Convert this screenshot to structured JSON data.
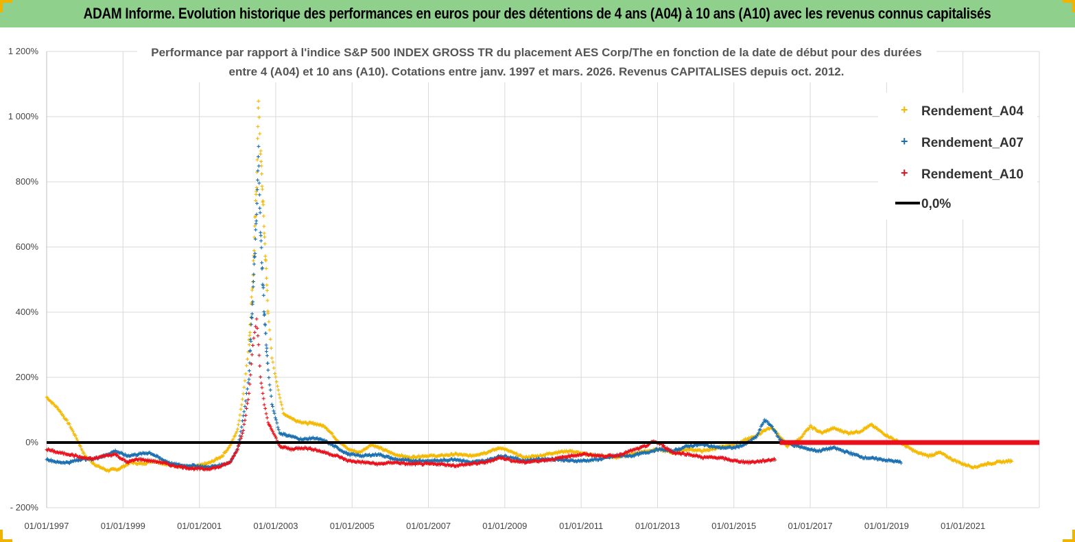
{
  "header": {
    "title": "ADAM Informe. Evolution historique des performances en euros pour des détentions de 4 ans (A04) à 10 ans (A10) avec les revenus connus capitalisés"
  },
  "colors": {
    "header_bg": "#8fd08c",
    "a04": "#f5b800",
    "a07": "#1a6fb0",
    "a10": "#e8101a",
    "zero": "#000000",
    "grid": "#d9d9d9"
  },
  "chart_data": {
    "type": "scatter",
    "title_line1": "Performance par rapport à l'indice S&P 500 INDEX GROSS TR  du placement AES Corp/The en fonction de la date de début pour des durées",
    "title_line2": "entre 4 (A04) et 10 ans (A10). Cotations entre janv. 1997 et mars. 2026. Revenus CAPITALISES depuis oct. 2012.",
    "y_ticks": [
      "1 200%",
      "1 000%",
      "800%",
      "600%",
      "400%",
      "200%",
      "0%",
      "- 200%"
    ],
    "ylim": [
      -200,
      1200
    ],
    "x_ticks": [
      "01/01/1997",
      "01/01/1999",
      "01/01/2001",
      "01/01/2003",
      "01/01/2005",
      "01/01/2007",
      "01/01/2009",
      "01/01/2011",
      "01/01/2013",
      "01/01/2015",
      "01/01/2017",
      "01/01/2019",
      "01/01/2021"
    ],
    "xlim": [
      "01/01/1997",
      "01/01/2023"
    ],
    "grid": true,
    "legend_position": "top-right",
    "series": [
      {
        "name": "Rendement_A04",
        "color": "#f5b800",
        "points": [
          [
            1997.0,
            140
          ],
          [
            1997.3,
            105
          ],
          [
            1997.6,
            55
          ],
          [
            1997.8,
            10
          ],
          [
            1998.0,
            -40
          ],
          [
            1998.3,
            -70
          ],
          [
            1998.6,
            -85
          ],
          [
            1998.9,
            -80
          ],
          [
            1999.2,
            -60
          ],
          [
            1999.5,
            -65
          ],
          [
            1999.8,
            -55
          ],
          [
            2000.1,
            -65
          ],
          [
            2000.4,
            -70
          ],
          [
            2000.7,
            -75
          ],
          [
            2001.0,
            -70
          ],
          [
            2001.3,
            -60
          ],
          [
            2001.6,
            -40
          ],
          [
            2001.8,
            -10
          ],
          [
            2002.0,
            40
          ],
          [
            2002.15,
            150
          ],
          [
            2002.3,
            300
          ],
          [
            2002.4,
            500
          ],
          [
            2002.5,
            800
          ],
          [
            2002.55,
            1050
          ],
          [
            2002.6,
            900
          ],
          [
            2002.7,
            650
          ],
          [
            2002.8,
            400
          ],
          [
            2002.9,
            260
          ],
          [
            2003.0,
            200
          ],
          [
            2003.2,
            90
          ],
          [
            2003.5,
            70
          ],
          [
            2003.8,
            60
          ],
          [
            2004.0,
            60
          ],
          [
            2004.3,
            50
          ],
          [
            2004.6,
            10
          ],
          [
            2004.9,
            -20
          ],
          [
            2005.2,
            -30
          ],
          [
            2005.5,
            -5
          ],
          [
            2005.8,
            -20
          ],
          [
            2006.1,
            -35
          ],
          [
            2006.5,
            -45
          ],
          [
            2006.9,
            -40
          ],
          [
            2007.3,
            -40
          ],
          [
            2007.7,
            -35
          ],
          [
            2008.1,
            -40
          ],
          [
            2008.5,
            -30
          ],
          [
            2008.9,
            -15
          ],
          [
            2009.2,
            -30
          ],
          [
            2009.5,
            -45
          ],
          [
            2009.9,
            -40
          ],
          [
            2010.3,
            -30
          ],
          [
            2010.7,
            -25
          ],
          [
            2011.1,
            -35
          ],
          [
            2011.5,
            -40
          ],
          [
            2011.9,
            -45
          ],
          [
            2012.3,
            -35
          ],
          [
            2012.7,
            -25
          ],
          [
            2013.0,
            -20
          ],
          [
            2013.4,
            -30
          ],
          [
            2013.8,
            -20
          ],
          [
            2014.2,
            -25
          ],
          [
            2014.6,
            -15
          ],
          [
            2015.0,
            -5
          ],
          [
            2015.3,
            10
          ],
          [
            2015.6,
            20
          ],
          [
            2015.8,
            40
          ],
          [
            2016.0,
            45
          ],
          [
            2016.2,
            20
          ],
          [
            2016.4,
            -10
          ],
          [
            2016.7,
            10
          ],
          [
            2017.0,
            50
          ],
          [
            2017.3,
            30
          ],
          [
            2017.6,
            45
          ],
          [
            2018.0,
            30
          ],
          [
            2018.3,
            35
          ],
          [
            2018.6,
            55
          ],
          [
            2018.9,
            30
          ],
          [
            2019.2,
            10
          ],
          [
            2019.5,
            -10
          ],
          [
            2019.8,
            -30
          ],
          [
            2020.1,
            -40
          ],
          [
            2020.4,
            -30
          ],
          [
            2020.7,
            -50
          ],
          [
            2021.0,
            -65
          ],
          [
            2021.3,
            -75
          ],
          [
            2021.6,
            -65
          ],
          [
            2021.9,
            -60
          ],
          [
            2022.3,
            -55
          ]
        ]
      },
      {
        "name": "Rendement_A07",
        "color": "#1a6fb0",
        "points": [
          [
            1997.0,
            -50
          ],
          [
            1997.3,
            -60
          ],
          [
            1997.6,
            -60
          ],
          [
            1997.9,
            -50
          ],
          [
            1998.2,
            -50
          ],
          [
            1998.5,
            -40
          ],
          [
            1998.8,
            -25
          ],
          [
            1999.1,
            -40
          ],
          [
            1999.4,
            -35
          ],
          [
            1999.7,
            -30
          ],
          [
            2000.0,
            -50
          ],
          [
            2000.3,
            -65
          ],
          [
            2000.6,
            -70
          ],
          [
            2000.9,
            -70
          ],
          [
            2001.2,
            -75
          ],
          [
            2001.5,
            -70
          ],
          [
            2001.8,
            -60
          ],
          [
            2002.0,
            -20
          ],
          [
            2002.15,
            80
          ],
          [
            2002.3,
            200
          ],
          [
            2002.4,
            450
          ],
          [
            2002.5,
            700
          ],
          [
            2002.55,
            900
          ],
          [
            2002.6,
            650
          ],
          [
            2002.7,
            400
          ],
          [
            2002.8,
            220
          ],
          [
            2002.9,
            120
          ],
          [
            2003.1,
            30
          ],
          [
            2003.4,
            20
          ],
          [
            2003.7,
            10
          ],
          [
            2004.0,
            15
          ],
          [
            2004.3,
            5
          ],
          [
            2004.6,
            -15
          ],
          [
            2004.9,
            -35
          ],
          [
            2005.3,
            -40
          ],
          [
            2005.7,
            -35
          ],
          [
            2006.1,
            -50
          ],
          [
            2006.5,
            -55
          ],
          [
            2006.9,
            -55
          ],
          [
            2007.3,
            -55
          ],
          [
            2007.7,
            -50
          ],
          [
            2008.1,
            -60
          ],
          [
            2008.5,
            -55
          ],
          [
            2008.9,
            -40
          ],
          [
            2009.2,
            -45
          ],
          [
            2009.5,
            -55
          ],
          [
            2009.9,
            -50
          ],
          [
            2010.3,
            -50
          ],
          [
            2010.7,
            -55
          ],
          [
            2011.1,
            -55
          ],
          [
            2011.5,
            -50
          ],
          [
            2011.9,
            -40
          ],
          [
            2012.3,
            -40
          ],
          [
            2012.7,
            -30
          ],
          [
            2013.0,
            -20
          ],
          [
            2013.4,
            -25
          ],
          [
            2013.8,
            -10
          ],
          [
            2014.2,
            -5
          ],
          [
            2014.6,
            -15
          ],
          [
            2015.0,
            -15
          ],
          [
            2015.3,
            -5
          ],
          [
            2015.6,
            20
          ],
          [
            2015.8,
            70
          ],
          [
            2016.0,
            50
          ],
          [
            2016.2,
            10
          ],
          [
            2016.5,
            -5
          ],
          [
            2016.8,
            -15
          ],
          [
            2017.2,
            -25
          ],
          [
            2017.6,
            -15
          ],
          [
            2018.0,
            -30
          ],
          [
            2018.4,
            -45
          ],
          [
            2018.8,
            -50
          ],
          [
            2019.1,
            -55
          ],
          [
            2019.4,
            -60
          ]
        ]
      },
      {
        "name": "Rendement_A10",
        "color": "#e8101a",
        "points": [
          [
            1997.0,
            -20
          ],
          [
            1997.3,
            -30
          ],
          [
            1997.6,
            -35
          ],
          [
            1997.9,
            -45
          ],
          [
            1998.2,
            -50
          ],
          [
            1998.5,
            -40
          ],
          [
            1998.8,
            -35
          ],
          [
            1999.1,
            -60
          ],
          [
            1999.4,
            -50
          ],
          [
            1999.7,
            -55
          ],
          [
            2000.0,
            -60
          ],
          [
            2000.3,
            -70
          ],
          [
            2000.6,
            -75
          ],
          [
            2000.9,
            -80
          ],
          [
            2001.2,
            -80
          ],
          [
            2001.5,
            -75
          ],
          [
            2001.8,
            -60
          ],
          [
            2002.0,
            -20
          ],
          [
            2002.15,
            40
          ],
          [
            2002.3,
            150
          ],
          [
            2002.4,
            300
          ],
          [
            2002.5,
            380
          ],
          [
            2002.55,
            300
          ],
          [
            2002.6,
            200
          ],
          [
            2002.7,
            120
          ],
          [
            2002.8,
            60
          ],
          [
            2002.9,
            40
          ],
          [
            2003.1,
            -10
          ],
          [
            2003.4,
            -20
          ],
          [
            2003.7,
            -15
          ],
          [
            2004.0,
            -20
          ],
          [
            2004.3,
            -30
          ],
          [
            2004.6,
            -40
          ],
          [
            2004.9,
            -55
          ],
          [
            2005.3,
            -60
          ],
          [
            2005.7,
            -65
          ],
          [
            2006.1,
            -60
          ],
          [
            2006.5,
            -65
          ],
          [
            2006.9,
            -65
          ],
          [
            2007.3,
            -65
          ],
          [
            2007.7,
            -70
          ],
          [
            2008.1,
            -65
          ],
          [
            2008.5,
            -60
          ],
          [
            2008.9,
            -45
          ],
          [
            2009.2,
            -55
          ],
          [
            2009.5,
            -60
          ],
          [
            2009.9,
            -55
          ],
          [
            2010.3,
            -50
          ],
          [
            2010.7,
            -40
          ],
          [
            2011.1,
            -35
          ],
          [
            2011.5,
            -40
          ],
          [
            2011.9,
            -40
          ],
          [
            2012.3,
            -25
          ],
          [
            2012.7,
            -10
          ],
          [
            2012.9,
            5
          ],
          [
            2013.1,
            -5
          ],
          [
            2013.4,
            -30
          ],
          [
            2013.8,
            -35
          ],
          [
            2014.2,
            -45
          ],
          [
            2014.6,
            -45
          ],
          [
            2015.0,
            -55
          ],
          [
            2015.4,
            -60
          ],
          [
            2015.8,
            -55
          ],
          [
            2016.1,
            -50
          ]
        ]
      }
    ],
    "zero_line": {
      "name": "0,0%",
      "value": 0
    },
    "flat_a10_tail": {
      "from": 2016.2,
      "to": 2023.0,
      "value": 0
    }
  }
}
